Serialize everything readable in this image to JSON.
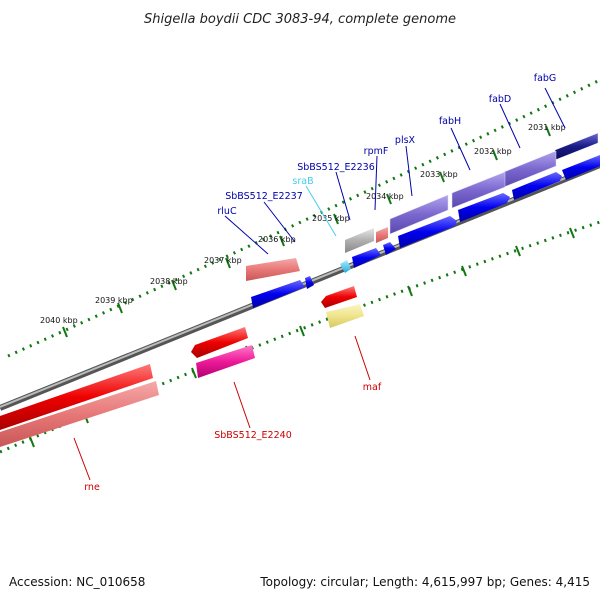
{
  "title": "Shigella boydii CDC 3083-94, complete genome",
  "accession": "Accession: NC_010658",
  "topology": "Topology: circular; Length: 4,615,997 bp; Genes: 4,415",
  "kbp_labels": [
    "2031 kbp",
    "2032 kbp",
    "2033 kbp",
    "2034 kbp",
    "2035 kbp",
    "2036 kbp",
    "2037 kbp",
    "2038 kbp",
    "2039 kbp",
    "2040 kbp"
  ],
  "genes": {
    "fabG": "fabG",
    "fabD": "fabD",
    "fabH": "fabH",
    "plsX": "plsX",
    "rpmF": "rpmF",
    "sbbs_e2236": "SbBS512_E2236",
    "sraB": "sraB",
    "sbbs_e2237": "SbBS512_E2237",
    "rluC": "rluC",
    "maf": "maf",
    "sbbs_e2240": "SbBS512_E2240",
    "rne": "rne"
  },
  "colors": {
    "forward_gene": "#0000ee",
    "reverse_gene": "#ee0000",
    "cds_blue": "#7b68cf",
    "cds_red": "#e87878",
    "rna": "#44ccee",
    "label_blue": "#0000aa",
    "label_red": "#cc0000",
    "tick": "#117711",
    "backbone": "#888888"
  }
}
